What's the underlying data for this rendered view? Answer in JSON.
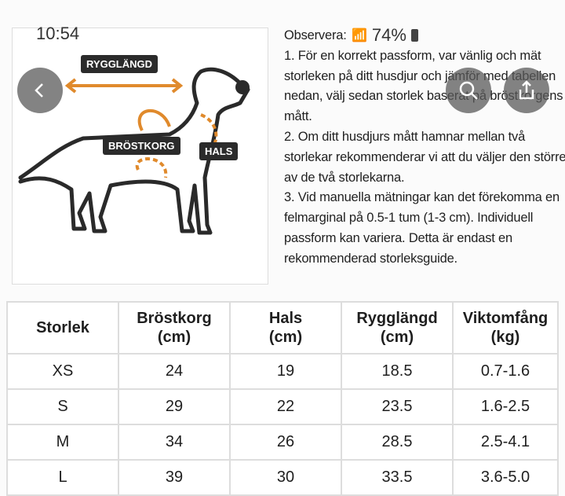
{
  "status_bar": {
    "time": "10:54",
    "battery": "74%"
  },
  "illustration": {
    "labels": {
      "back": "RYGGLÄNGD",
      "chest": "BRÖSTKORG",
      "neck": "HALS"
    }
  },
  "notes": {
    "title": "Observera:",
    "lines": [
      "1. För en korrekt passform, var vänlig och mät storleken på ditt husdjur och jämför med tabellen nedan, välj sedan storlek baserat på bröstkorgens mått.",
      "2. Om ditt husdjurs mått hamnar mellan två storlekar rekommenderar vi att du väljer den större av de två storlekarna.",
      "3. Vid manuella mätningar kan det förekomma en felmarginal på 0.5-1 tum (1-3 cm). Individuell passform kan variera. Detta är endast en rekommenderad storleksguide."
    ]
  },
  "overlay": {
    "back": "back-icon",
    "search": "search-icon",
    "share": "share-icon"
  },
  "table": {
    "headers": [
      "Storlek",
      "Bröstkorg\n(cm)",
      "Hals\n(cm)",
      "Rygglängd\n(cm)",
      "Viktomfång\n(kg)"
    ],
    "rows": [
      [
        "XS",
        "24",
        "19",
        "18.5",
        "0.7-1.6"
      ],
      [
        "S",
        "29",
        "22",
        "23.5",
        "1.6-2.5"
      ],
      [
        "M",
        "34",
        "26",
        "28.5",
        "2.5-4.1"
      ],
      [
        "L",
        "39",
        "30",
        "33.5",
        "3.6-5.0"
      ]
    ]
  }
}
